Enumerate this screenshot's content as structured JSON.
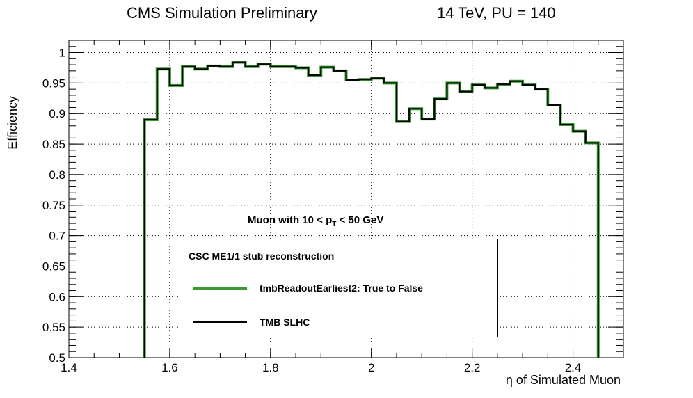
{
  "header": {
    "left": "CMS Simulation Preliminary",
    "right": "14 TeV, PU = 140"
  },
  "chart_data": {
    "type": "line",
    "style": "step histogram",
    "xlabel": "η of Simulated Muon",
    "ylabel": "Efficiency",
    "xlim": [
      1.4,
      2.5
    ],
    "ylim": [
      0.5,
      1.02
    ],
    "grid": true,
    "x_ticks": [
      "1.4",
      "1.6",
      "1.8",
      "2",
      "2.2",
      "2.4"
    ],
    "y_ticks": [
      "0.5",
      "0.55",
      "0.6",
      "0.65",
      "0.7",
      "0.75",
      "0.8",
      "0.85",
      "0.9",
      "0.95",
      "1"
    ],
    "bin_edges": [
      1.55,
      1.575,
      1.6,
      1.625,
      1.65,
      1.675,
      1.7,
      1.725,
      1.75,
      1.775,
      1.8,
      1.825,
      1.85,
      1.875,
      1.9,
      1.925,
      1.95,
      1.975,
      2.0,
      2.025,
      2.05,
      2.075,
      2.1,
      2.125,
      2.15,
      2.175,
      2.2,
      2.225,
      2.25,
      2.275,
      2.3,
      2.325,
      2.35,
      2.375,
      2.4,
      2.425,
      2.45
    ],
    "series": [
      {
        "name": "tmbReadoutEarliest2: True to False",
        "color": "#3a9a32",
        "values": [
          0.89,
          0.973,
          0.946,
          0.977,
          0.973,
          0.978,
          0.977,
          0.984,
          0.977,
          0.981,
          0.977,
          0.977,
          0.975,
          0.963,
          0.976,
          0.97,
          0.955,
          0.956,
          0.958,
          0.95,
          0.887,
          0.908,
          0.891,
          0.924,
          0.95,
          0.936,
          0.947,
          0.942,
          0.948,
          0.953,
          0.947,
          0.94,
          0.914,
          0.882,
          0.871,
          0.852
        ]
      },
      {
        "name": "TMB SLHC",
        "color": "#000000",
        "values": [
          0.89,
          0.973,
          0.946,
          0.977,
          0.973,
          0.978,
          0.977,
          0.984,
          0.977,
          0.981,
          0.977,
          0.977,
          0.975,
          0.963,
          0.976,
          0.97,
          0.955,
          0.956,
          0.958,
          0.95,
          0.887,
          0.908,
          0.891,
          0.924,
          0.95,
          0.936,
          0.947,
          0.942,
          0.948,
          0.953,
          0.947,
          0.94,
          0.914,
          0.882,
          0.871,
          0.852
        ]
      }
    ],
    "annotation": {
      "prefix": "Muon with  10 < p",
      "sub": "T",
      "suffix": " < 50 GeV"
    },
    "legend": {
      "title": "CSC ME1/1 stub reconstruction",
      "placement": "center-bottom"
    }
  }
}
